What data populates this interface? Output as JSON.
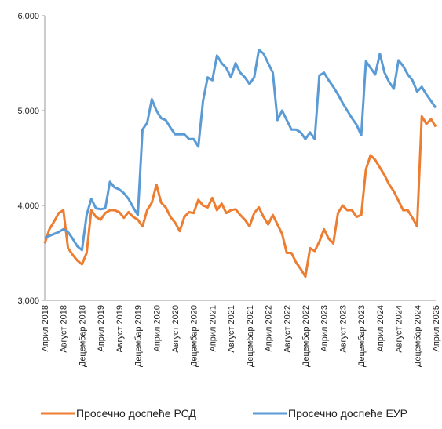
{
  "chart_data": {
    "type": "line",
    "categories": [
      "Април 2018",
      null,
      null,
      null,
      "Август 2018",
      null,
      null,
      null,
      "Децембар 2018",
      null,
      null,
      null,
      "Април 2019",
      null,
      null,
      null,
      "Август 2019",
      null,
      null,
      null,
      "Децембар 2019",
      null,
      null,
      null,
      "Април 2020",
      null,
      null,
      null,
      "Август 2020",
      null,
      null,
      null,
      "Децембар 2020",
      null,
      null,
      null,
      "Април 2021",
      null,
      null,
      null,
      "Август 2021",
      null,
      null,
      null,
      "Децембар 2021",
      null,
      null,
      null,
      "Април 2022",
      null,
      null,
      null,
      "Август 2022",
      null,
      null,
      null,
      "Децембар 2022",
      null,
      null,
      null,
      "Април 2023",
      null,
      null,
      null,
      "Август 2023",
      null,
      null,
      null,
      "Децембар 2023",
      null,
      null,
      null,
      "Април 2024",
      null,
      null,
      null,
      "Август 2024",
      null,
      null,
      null,
      "Децембар 2024",
      null,
      null,
      null,
      "Април 2025"
    ],
    "series": [
      {
        "name": "Просечно доспеће РСД",
        "color": "#ed7d31",
        "values": [
          3600,
          3750,
          3830,
          3920,
          3950,
          3550,
          3480,
          3420,
          3380,
          3500,
          3950,
          3880,
          3850,
          3920,
          3950,
          3950,
          3930,
          3870,
          3930,
          3880,
          3850,
          3780,
          3950,
          4030,
          4220,
          4030,
          3980,
          3880,
          3820,
          3730,
          3880,
          3930,
          3920,
          4060,
          4000,
          3980,
          4080,
          3950,
          4020,
          3920,
          3950,
          3960,
          3900,
          3850,
          3780,
          3920,
          3980,
          3880,
          3800,
          3900,
          3800,
          3700,
          3500,
          3500,
          3400,
          3330,
          3250,
          3550,
          3520,
          3620,
          3750,
          3650,
          3600,
          3920,
          4000,
          3950,
          3950,
          3880,
          3900,
          4380,
          4530,
          4480,
          4400,
          4320,
          4220,
          4150,
          4050,
          3950,
          3950,
          3870,
          3780,
          4940,
          4860,
          4910,
          4830
        ]
      },
      {
        "name": "Просечно доспеће ЕУР",
        "color": "#5b9bd5",
        "values": [
          3660,
          3680,
          3700,
          3720,
          3750,
          3720,
          3650,
          3570,
          3530,
          3900,
          4070,
          3970,
          3960,
          3970,
          4250,
          4190,
          4170,
          4130,
          4070,
          3980,
          3900,
          4800,
          4870,
          5120,
          5000,
          4920,
          4900,
          4820,
          4750,
          4750,
          4750,
          4700,
          4700,
          4620,
          5100,
          5350,
          5320,
          5580,
          5500,
          5450,
          5350,
          5500,
          5400,
          5350,
          5280,
          5350,
          5640,
          5600,
          5500,
          5400,
          4900,
          5000,
          4900,
          4800,
          4800,
          4770,
          4700,
          4770,
          4700,
          5370,
          5400,
          5320,
          5250,
          5170,
          5080,
          5000,
          4920,
          4850,
          4740,
          5520,
          5450,
          5380,
          5600,
          5400,
          5300,
          5230,
          5530,
          5470,
          5380,
          5320,
          5200,
          5250,
          5170,
          5100,
          5030
        ]
      }
    ],
    "ylim": [
      3000,
      6000
    ],
    "yticks": [
      {
        "value": 3000,
        "label": "3,000"
      },
      {
        "value": 4000,
        "label": "4,000"
      },
      {
        "value": 5000,
        "label": "5,000"
      },
      {
        "value": 6000,
        "label": "6,000"
      }
    ],
    "legend": "bottom"
  }
}
